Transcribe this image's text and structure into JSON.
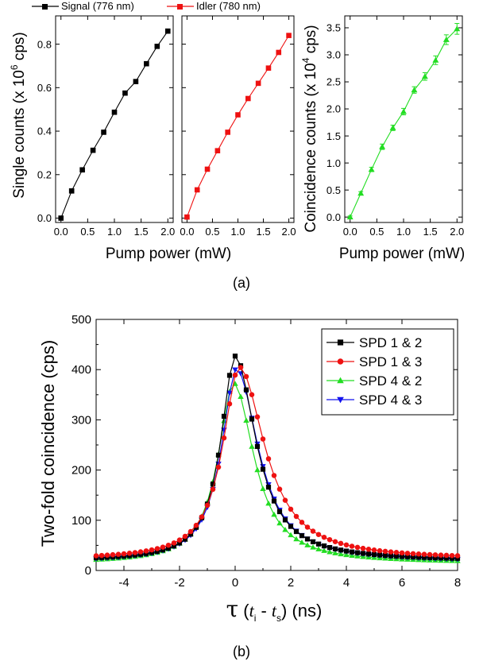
{
  "chart_data": [
    {
      "type": "line",
      "panel_label": "(a)",
      "xlabel": "Pump power (mW)",
      "ylabel": "Single counts (x 10",
      "ylabel_sup": "6",
      "ylabel_end": " cps)",
      "xlim": [
        -0.1,
        2.1
      ],
      "ylim": [
        -0.02,
        0.93
      ],
      "xticks": [
        "0.0",
        "0.5",
        "1.0",
        "1.5",
        "2.0"
      ],
      "yticks": [
        "0.0",
        "0.2",
        "0.4",
        "0.6",
        "0.8"
      ],
      "series": [
        {
          "name": "Signal (776 nm)",
          "color": "#000000",
          "marker": "square",
          "x": [
            0.0,
            0.2,
            0.4,
            0.6,
            0.8,
            1.0,
            1.2,
            1.4,
            1.6,
            1.8,
            2.0
          ],
          "y": [
            0.0,
            0.125,
            0.222,
            0.312,
            0.395,
            0.487,
            0.575,
            0.628,
            0.71,
            0.79,
            0.86
          ]
        }
      ]
    },
    {
      "type": "line",
      "xlabel": "Pump power (mW)",
      "xlim": [
        -0.1,
        2.1
      ],
      "ylim": [
        -0.02,
        0.93
      ],
      "xticks": [
        "0.0",
        "0.5",
        "1.0",
        "1.5",
        "2.0"
      ],
      "series": [
        {
          "name": "Idler (780 nm)",
          "color": "#ee1111",
          "marker": "square",
          "x": [
            0.0,
            0.2,
            0.4,
            0.6,
            0.8,
            1.0,
            1.2,
            1.4,
            1.6,
            1.8,
            2.0
          ],
          "y": [
            0.005,
            0.13,
            0.225,
            0.31,
            0.395,
            0.475,
            0.55,
            0.62,
            0.69,
            0.762,
            0.84
          ]
        }
      ]
    },
    {
      "type": "line",
      "xlabel": "Pump power (mW)",
      "ylabel": "Coincidence counts (x 10",
      "ylabel_sup": "4",
      "ylabel_end": " cps)",
      "xlim": [
        -0.1,
        2.1
      ],
      "ylim": [
        -0.1,
        3.72
      ],
      "xticks": [
        "0.0",
        "0.5",
        "1.0",
        "1.5",
        "2.0"
      ],
      "yticks": [
        "0.0",
        "0.5",
        "1.0",
        "1.5",
        "2.0",
        "2.5",
        "3.0",
        "3.5"
      ],
      "series": [
        {
          "color": "#22dd22",
          "marker": "triangle-up",
          "error_bars": true,
          "x": [
            0.0,
            0.2,
            0.4,
            0.6,
            0.8,
            1.0,
            1.2,
            1.4,
            1.6,
            1.8,
            2.0
          ],
          "y": [
            0.0,
            0.44,
            0.88,
            1.3,
            1.65,
            1.95,
            2.35,
            2.6,
            2.9,
            3.28,
            3.48
          ],
          "err": [
            0.02,
            0.03,
            0.04,
            0.05,
            0.05,
            0.06,
            0.06,
            0.07,
            0.08,
            0.09,
            0.1
          ]
        }
      ]
    },
    {
      "type": "line",
      "panel_label": "(b)",
      "xlabel_tau": "τ",
      "xlabel_open": " (",
      "xlabel_ti": "t",
      "xlabel_i": "i",
      "xlabel_mid": " - ",
      "xlabel_ts": "t",
      "xlabel_s": "s",
      "xlabel_close": ") (ns)",
      "ylabel": "Two-fold coincidence (cps)",
      "xlim": [
        -5,
        8
      ],
      "ylim": [
        0,
        500
      ],
      "xticks": [
        "-4",
        "-2",
        "0",
        "2",
        "4",
        "6",
        "8"
      ],
      "yticks": [
        "0",
        "100",
        "200",
        "300",
        "400",
        "500"
      ],
      "legend_position": "top-right",
      "series": [
        {
          "name": "SPD 1 & 2",
          "color": "#000000",
          "marker": "square",
          "sigma_left": 0.62,
          "sigma_right": 0.9,
          "peak": 427,
          "baseline": 19,
          "shift": 0.0
        },
        {
          "name": "SPD 1 & 3",
          "color": "#ee1111",
          "marker": "circle",
          "sigma_left": 0.72,
          "sigma_right": 1.1,
          "peak": 405,
          "baseline": 22,
          "shift": 0.15
        },
        {
          "name": "SPD 4 & 2",
          "color": "#22dd22",
          "marker": "triangle-up",
          "sigma_left": 0.68,
          "sigma_right": 0.88,
          "peak": 373,
          "baseline": 15,
          "shift": -0.05
        },
        {
          "name": "SPD 4 & 3",
          "color": "#1111ee",
          "marker": "triangle-down",
          "sigma_left": 0.66,
          "sigma_right": 0.94,
          "peak": 402,
          "baseline": 17,
          "shift": 0.05
        }
      ]
    }
  ]
}
